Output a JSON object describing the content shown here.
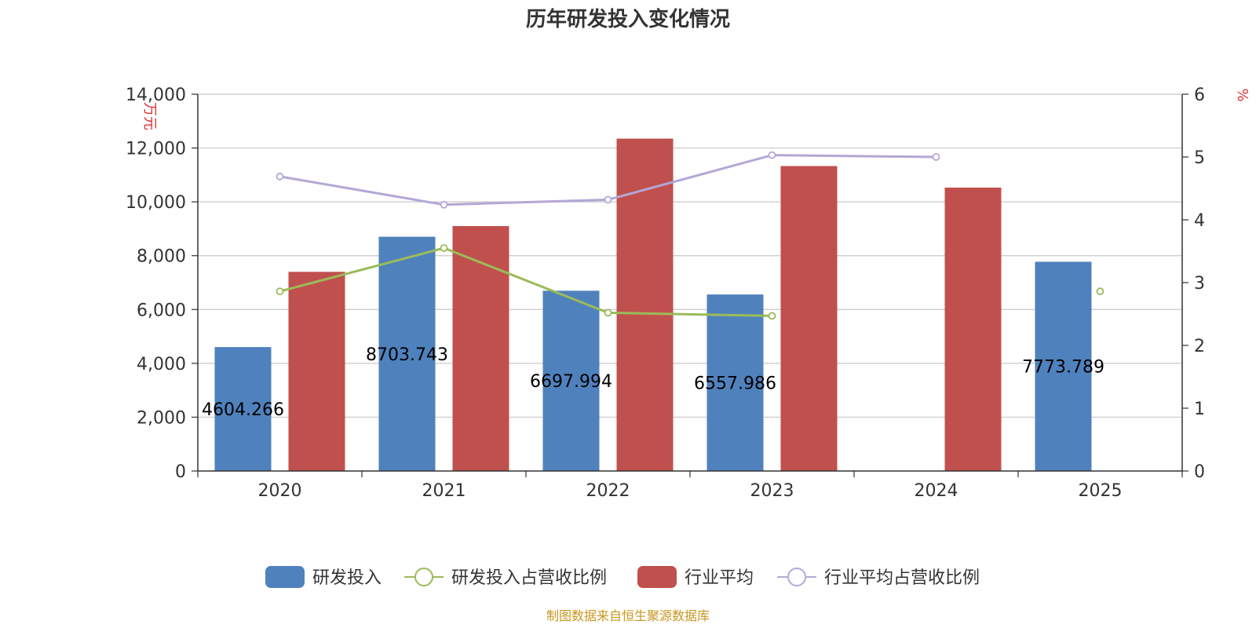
{
  "chart_data": {
    "type": "bar",
    "title": "历年研发投入变化情况",
    "categories": [
      "2020",
      "2021",
      "2022",
      "2023",
      "2024",
      "2025"
    ],
    "y_left": {
      "unit_label": "万元",
      "min": 0,
      "max": 14000,
      "step": 2000,
      "ticks": [
        "0",
        "2,000",
        "4,000",
        "6,000",
        "8,000",
        "10,000",
        "12,000",
        "14,000"
      ]
    },
    "y_right": {
      "unit_label": "%",
      "min": 0,
      "max": 6,
      "step": 1,
      "ticks": [
        "0",
        "1",
        "2",
        "3",
        "4",
        "5",
        "6"
      ]
    },
    "grid": true,
    "legend_position": "bottom",
    "series": [
      {
        "name": "研发投入",
        "kind": "bar",
        "axis": "left",
        "color": "#4f81bd",
        "values": [
          4604.266,
          8703.743,
          6697.994,
          6557.986,
          null,
          7773.789
        ],
        "labels": [
          "4604.266",
          "8703.743",
          "6697.994",
          "6557.986",
          "",
          "7773.789"
        ]
      },
      {
        "name": "研发投入占营收比例",
        "kind": "line",
        "axis": "right",
        "color": "#9bbb59",
        "values": [
          2.86,
          3.55,
          2.52,
          2.47,
          null,
          2.86
        ]
      },
      {
        "name": "行业平均",
        "kind": "bar",
        "axis": "left",
        "color": "#c0504d",
        "values": [
          7400,
          9100,
          12350,
          11330,
          10530,
          null
        ]
      },
      {
        "name": "行业平均占营收比例",
        "kind": "line",
        "axis": "right",
        "color": "#b4a7d6",
        "values": [
          4.69,
          4.24,
          4.32,
          5.03,
          5.0,
          null
        ]
      }
    ],
    "source": "制图数据来自恒生聚源数据库"
  }
}
